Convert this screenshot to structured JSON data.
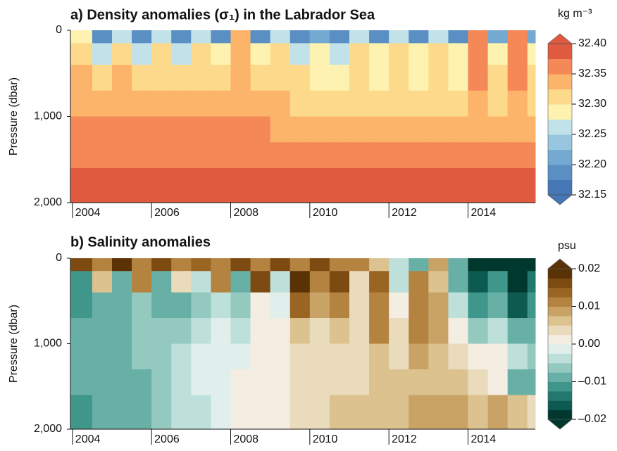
{
  "chart_data": [
    {
      "type": "heatmap",
      "title": "a) Density anomalies (σ₁) in the Labrador Sea",
      "ylabel": "Pressure (dbar)",
      "xlim": [
        2003.95,
        2015.7
      ],
      "ylim": [
        2000,
        0
      ],
      "xticks": [
        2004,
        2006,
        2008,
        2010,
        2012,
        2014
      ],
      "yticks": [
        0,
        {
          "value": 1000,
          "label": "1,000"
        },
        {
          "value": 2000,
          "label": "2,000"
        }
      ],
      "x_edges": [
        2003.95,
        2004.5,
        2005,
        2005.5,
        2006,
        2006.5,
        2007,
        2007.5,
        2008,
        2008.5,
        2009,
        2009.5,
        2010,
        2010.5,
        2011,
        2011.5,
        2012,
        2012.5,
        2013,
        2013.5,
        2014,
        2014.5,
        2015,
        2015.5,
        2015.7
      ],
      "y_edges": [
        0,
        150,
        400,
        700,
        1000,
        1300,
        1600,
        2000
      ],
      "z": [
        [
          32.28,
          32.19,
          32.27,
          32.19,
          32.26,
          32.18,
          32.25,
          32.19,
          32.33,
          32.19,
          32.26,
          32.18,
          32.22,
          32.18,
          32.27,
          32.19,
          32.27,
          32.18,
          32.26,
          32.19,
          32.35,
          32.2,
          32.36,
          32.2
        ],
        [
          32.32,
          32.27,
          32.31,
          32.27,
          32.31,
          32.27,
          32.31,
          32.28,
          32.34,
          32.29,
          32.31,
          32.27,
          32.29,
          32.27,
          32.31,
          32.28,
          32.31,
          32.28,
          32.31,
          32.28,
          32.36,
          32.3,
          32.36,
          32.28
        ],
        [
          32.33,
          32.31,
          32.33,
          32.31,
          32.32,
          32.31,
          32.32,
          32.31,
          32.34,
          32.32,
          32.32,
          32.31,
          32.3,
          32.3,
          32.32,
          32.3,
          32.32,
          32.3,
          32.32,
          32.3,
          32.35,
          32.31,
          32.35,
          32.31
        ],
        [
          32.34,
          32.33,
          32.34,
          32.33,
          32.33,
          32.33,
          32.33,
          32.33,
          32.34,
          32.33,
          32.33,
          32.32,
          32.32,
          32.31,
          32.32,
          32.31,
          32.32,
          32.31,
          32.32,
          32.31,
          32.34,
          32.32,
          32.34,
          32.32
        ],
        [
          32.35,
          32.35,
          32.35,
          32.35,
          32.35,
          32.35,
          32.35,
          32.35,
          32.35,
          32.35,
          32.345,
          32.34,
          32.34,
          32.33,
          32.335,
          32.33,
          32.33,
          32.33,
          32.33,
          32.33,
          32.34,
          32.33,
          32.34,
          32.33
        ],
        [
          32.36,
          32.36,
          32.36,
          32.36,
          32.36,
          32.36,
          32.36,
          32.36,
          32.36,
          32.36,
          32.36,
          32.36,
          32.355,
          32.355,
          32.355,
          32.355,
          32.355,
          32.35,
          32.35,
          32.35,
          32.355,
          32.35,
          32.35,
          32.35
        ],
        [
          32.38,
          32.38,
          32.38,
          32.38,
          32.38,
          32.38,
          32.38,
          32.38,
          32.38,
          32.38,
          32.38,
          32.38,
          32.38,
          32.38,
          32.38,
          32.38,
          32.38,
          32.38,
          32.38,
          32.38,
          32.38,
          32.38,
          32.38,
          32.38
        ]
      ],
      "colorbar": {
        "label": "kg m⁻³",
        "clim": [
          32.15,
          32.4
        ],
        "ticks": [
          {
            "value": 32.4,
            "label": "32.40"
          },
          32.35,
          {
            "value": 32.3,
            "label": "32.30"
          },
          32.25,
          {
            "value": 32.2,
            "label": "32.20"
          },
          32.15
        ],
        "colors": [
          "#4576b5",
          "#5a8fc4",
          "#74a9d2",
          "#98c6e0",
          "#c2e2ea",
          "#fdf2b0",
          "#fdd98b",
          "#fbb46a",
          "#f48856",
          "#e05a3f"
        ]
      }
    },
    {
      "type": "heatmap",
      "title": "b) Salinity anomalies",
      "ylabel": "Pressure (dbar)",
      "xlim": [
        2003.95,
        2015.7
      ],
      "ylim": [
        2000,
        0
      ],
      "xticks": [
        2004,
        2006,
        2008,
        2010,
        2012,
        2014
      ],
      "yticks": [
        0,
        {
          "value": 1000,
          "label": "1,000"
        },
        {
          "value": 2000,
          "label": "2,000"
        }
      ],
      "x_edges": [
        2003.95,
        2004.5,
        2005,
        2005.5,
        2006,
        2006.5,
        2007,
        2007.5,
        2008,
        2008.5,
        2009,
        2009.5,
        2010,
        2010.5,
        2011,
        2011.5,
        2012,
        2012.5,
        2013,
        2013.5,
        2014,
        2014.5,
        2015,
        2015.5,
        2015.7
      ],
      "y_edges": [
        0,
        150,
        400,
        700,
        1000,
        1300,
        1600,
        2000
      ],
      "z": [
        [
          0.015,
          0.012,
          0.018,
          0.01,
          0.016,
          0.012,
          0.014,
          0.012,
          0.017,
          0.012,
          0.015,
          0.01,
          0.016,
          0.012,
          0.012,
          0.005,
          -0.005,
          -0.01,
          0.008,
          -0.01,
          -0.02,
          -0.02,
          -0.02,
          -0.02
        ],
        [
          -0.012,
          0.005,
          -0.01,
          0.012,
          -0.01,
          0.004,
          -0.005,
          0.01,
          -0.008,
          0.016,
          -0.004,
          0.018,
          0.012,
          0.015,
          0.004,
          0.014,
          -0.004,
          0.01,
          0.006,
          -0.008,
          -0.016,
          -0.012,
          -0.018,
          -0.014
        ],
        [
          -0.012,
          -0.008,
          -0.01,
          -0.006,
          -0.008,
          -0.008,
          -0.006,
          -0.004,
          -0.006,
          0.002,
          -0.002,
          0.014,
          0.008,
          0.01,
          0.004,
          0.012,
          0.0,
          0.012,
          0.008,
          -0.004,
          -0.012,
          -0.008,
          -0.016,
          -0.012
        ],
        [
          -0.01,
          -0.008,
          -0.008,
          -0.006,
          -0.006,
          -0.006,
          -0.004,
          -0.002,
          -0.004,
          0.0,
          0.0,
          0.006,
          0.004,
          0.006,
          0.004,
          0.01,
          0.004,
          0.01,
          0.008,
          0.002,
          -0.006,
          -0.004,
          -0.01,
          -0.008
        ],
        [
          -0.01,
          -0.008,
          -0.008,
          -0.006,
          -0.006,
          -0.004,
          -0.002,
          -0.002,
          -0.002,
          0.0,
          0.002,
          0.004,
          0.004,
          0.004,
          0.004,
          0.006,
          0.004,
          0.008,
          0.006,
          0.004,
          0.002,
          0.002,
          -0.004,
          -0.006
        ],
        [
          -0.01,
          -0.01,
          -0.008,
          -0.008,
          -0.006,
          -0.004,
          -0.002,
          -0.002,
          0.0,
          0.002,
          0.002,
          0.004,
          0.004,
          0.004,
          0.004,
          0.006,
          0.006,
          0.006,
          0.006,
          0.006,
          0.004,
          0.002,
          -0.008,
          -0.01
        ],
        [
          -0.012,
          -0.01,
          -0.01,
          -0.008,
          -0.006,
          -0.004,
          -0.004,
          -0.002,
          0.0,
          0.002,
          0.002,
          0.004,
          0.004,
          0.006,
          0.006,
          0.006,
          0.006,
          0.008,
          0.008,
          0.008,
          0.006,
          0.008,
          0.006,
          0.004
        ]
      ],
      "colorbar": {
        "label": "psu",
        "clim": [
          -0.02,
          0.02
        ],
        "ticks": [
          0.02,
          0.01,
          {
            "value": 0,
            "label": "0.00"
          },
          {
            "value": -0.01,
            "label": "–0.01"
          },
          {
            "value": -0.02,
            "label": "–0.02"
          }
        ],
        "colors": [
          "#01382e",
          "#0d5a50",
          "#22786e",
          "#3f968b",
          "#68b0a6",
          "#94c9c0",
          "#bde0da",
          "#e0efec",
          "#f3ede2",
          "#eadbbd",
          "#dcc28f",
          "#c9a366",
          "#b4833f",
          "#9a6523",
          "#7d4b12",
          "#5a3206"
        ]
      }
    }
  ]
}
